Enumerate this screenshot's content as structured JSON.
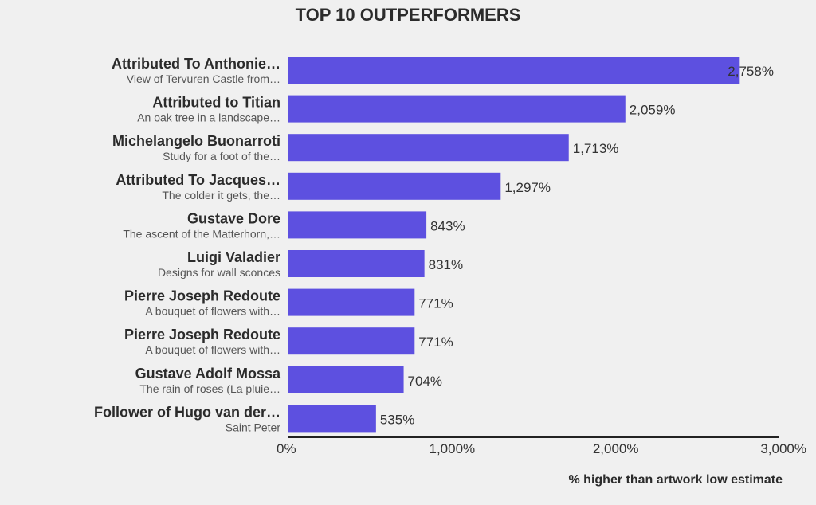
{
  "chart_data": {
    "type": "bar",
    "orientation": "horizontal",
    "title": "TOP 10 OUTPERFORMERS",
    "xlabel": "% higher than artwork low estimate",
    "xlim": [
      0,
      3000
    ],
    "ticks": [
      {
        "value": 0,
        "label": "0%"
      },
      {
        "value": 1000,
        "label": "1,000%"
      },
      {
        "value": 2000,
        "label": "2,000%"
      },
      {
        "value": 3000,
        "label": "3,000%"
      }
    ],
    "color": "#5d50e0",
    "items": [
      {
        "artist": "Attributed To Anthonie…",
        "artwork": "View of Tervuren Castle from…",
        "value": 2758,
        "label": "2,758%"
      },
      {
        "artist": "Attributed to Titian",
        "artwork": "An oak tree in a landscape…",
        "value": 2059,
        "label": "2,059%"
      },
      {
        "artist": "Michelangelo Buonarroti",
        "artwork": "Study for a foot of the…",
        "value": 1713,
        "label": "1,713%"
      },
      {
        "artist": "Attributed To Jacques…",
        "artwork": "The colder it gets, the…",
        "value": 1297,
        "label": "1,297%"
      },
      {
        "artist": "Gustave Dore",
        "artwork": "The ascent of the Matterhorn,…",
        "value": 843,
        "label": "843%"
      },
      {
        "artist": "Luigi Valadier",
        "artwork": "Designs for wall sconces",
        "value": 831,
        "label": "831%"
      },
      {
        "artist": "Pierre Joseph Redoute",
        "artwork": "A bouquet of flowers with…",
        "value": 771,
        "label": "771%"
      },
      {
        "artist": "Pierre Joseph Redoute",
        "artwork": "A bouquet of flowers with…",
        "value": 771,
        "label": "771%"
      },
      {
        "artist": "Gustave Adolf Mossa",
        "artwork": "The rain of roses (La pluie…",
        "value": 704,
        "label": "704%"
      },
      {
        "artist": "Follower of Hugo van der…",
        "artwork": "Saint Peter",
        "value": 535,
        "label": "535%"
      }
    ]
  }
}
